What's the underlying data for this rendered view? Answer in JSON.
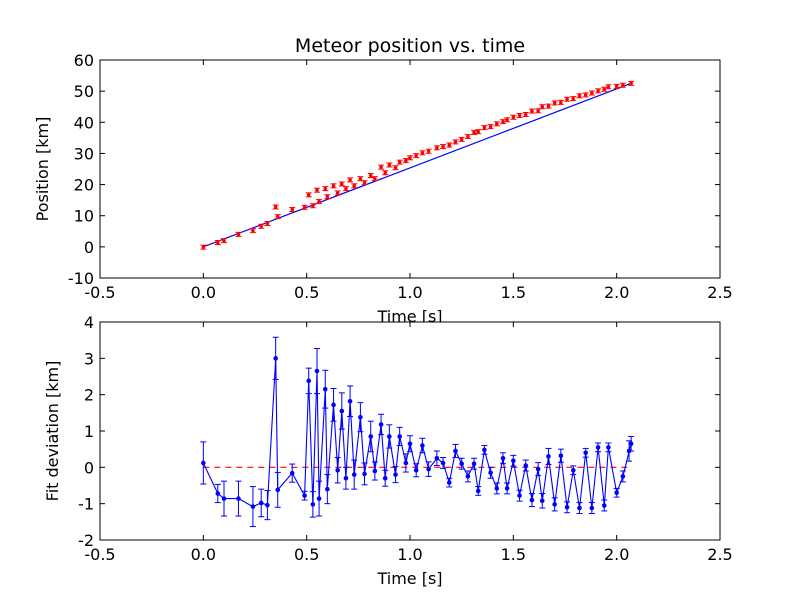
{
  "chart_data": [
    {
      "type": "scatter",
      "title": "Meteor position vs. time",
      "xlabel": "Time [s]",
      "ylabel": "Position [km]",
      "xlim": [
        -0.5,
        2.5
      ],
      "ylim": [
        -10,
        60
      ],
      "xticks": [
        "-0.5",
        "0.0",
        "0.5",
        "1.0",
        "1.5",
        "2.0",
        "2.5"
      ],
      "yticks": [
        "-10",
        "0",
        "10",
        "20",
        "30",
        "40",
        "50",
        "60"
      ],
      "points_color": "#ff0000",
      "fit_color": "#0000ff",
      "fit_line": {
        "x": [
          0.0,
          2.07
        ],
        "y": [
          0.0,
          52.5
        ]
      },
      "points": [
        {
          "x": 0.0,
          "y": -0.1
        },
        {
          "x": 0.07,
          "y": 1.4
        },
        {
          "x": 0.1,
          "y": 2.0
        },
        {
          "x": 0.17,
          "y": 4.0
        },
        {
          "x": 0.24,
          "y": 5.2
        },
        {
          "x": 0.28,
          "y": 6.6
        },
        {
          "x": 0.31,
          "y": 7.5
        },
        {
          "x": 0.35,
          "y": 12.8
        },
        {
          "x": 0.36,
          "y": 9.7
        },
        {
          "x": 0.43,
          "y": 12.0
        },
        {
          "x": 0.49,
          "y": 12.7
        },
        {
          "x": 0.51,
          "y": 16.7
        },
        {
          "x": 0.53,
          "y": 13.2
        },
        {
          "x": 0.55,
          "y": 18.2
        },
        {
          "x": 0.56,
          "y": 14.6
        },
        {
          "x": 0.59,
          "y": 18.7
        },
        {
          "x": 0.6,
          "y": 16.1
        },
        {
          "x": 0.63,
          "y": 19.6
        },
        {
          "x": 0.65,
          "y": 17.3
        },
        {
          "x": 0.67,
          "y": 20.2
        },
        {
          "x": 0.69,
          "y": 18.7
        },
        {
          "x": 0.71,
          "y": 21.5
        },
        {
          "x": 0.73,
          "y": 19.6
        },
        {
          "x": 0.76,
          "y": 21.9
        },
        {
          "x": 0.78,
          "y": 20.6
        },
        {
          "x": 0.81,
          "y": 22.9
        },
        {
          "x": 0.83,
          "y": 21.9
        },
        {
          "x": 0.86,
          "y": 25.6
        },
        {
          "x": 0.88,
          "y": 23.8
        },
        {
          "x": 0.9,
          "y": 26.3
        },
        {
          "x": 0.93,
          "y": 25.4
        },
        {
          "x": 0.95,
          "y": 27.2
        },
        {
          "x": 0.98,
          "y": 27.7
        },
        {
          "x": 1.0,
          "y": 28.6
        },
        {
          "x": 1.03,
          "y": 29.3
        },
        {
          "x": 1.06,
          "y": 30.2
        },
        {
          "x": 1.09,
          "y": 30.7
        },
        {
          "x": 1.13,
          "y": 31.8
        },
        {
          "x": 1.16,
          "y": 32.2
        },
        {
          "x": 1.19,
          "y": 32.7
        },
        {
          "x": 1.22,
          "y": 33.7
        },
        {
          "x": 1.25,
          "y": 34.5
        },
        {
          "x": 1.28,
          "y": 35.4
        },
        {
          "x": 1.31,
          "y": 36.7
        },
        {
          "x": 1.33,
          "y": 37.0
        },
        {
          "x": 1.36,
          "y": 38.3
        },
        {
          "x": 1.39,
          "y": 38.6
        },
        {
          "x": 1.42,
          "y": 39.5
        },
        {
          "x": 1.45,
          "y": 40.2
        },
        {
          "x": 1.47,
          "y": 40.8
        },
        {
          "x": 1.5,
          "y": 41.6
        },
        {
          "x": 1.53,
          "y": 42.2
        },
        {
          "x": 1.56,
          "y": 42.5
        },
        {
          "x": 1.59,
          "y": 43.6
        },
        {
          "x": 1.62,
          "y": 43.7
        },
        {
          "x": 1.64,
          "y": 45.0
        },
        {
          "x": 1.67,
          "y": 45.2
        },
        {
          "x": 1.7,
          "y": 46.2
        },
        {
          "x": 1.73,
          "y": 46.4
        },
        {
          "x": 1.76,
          "y": 47.4
        },
        {
          "x": 1.79,
          "y": 47.6
        },
        {
          "x": 1.82,
          "y": 48.5
        },
        {
          "x": 1.85,
          "y": 48.8
        },
        {
          "x": 1.88,
          "y": 49.4
        },
        {
          "x": 1.91,
          "y": 50.1
        },
        {
          "x": 1.94,
          "y": 50.6
        },
        {
          "x": 1.96,
          "y": 51.4
        },
        {
          "x": 2.0,
          "y": 51.5
        },
        {
          "x": 2.03,
          "y": 51.9
        },
        {
          "x": 2.07,
          "y": 52.5
        }
      ]
    },
    {
      "type": "line",
      "title": "",
      "xlabel": "Time [s]",
      "ylabel": "Fit deviation [km]",
      "xlim": [
        -0.5,
        2.5
      ],
      "ylim": [
        -2,
        4
      ],
      "xticks": [
        "-0.5",
        "0.0",
        "0.5",
        "1.0",
        "1.5",
        "2.0",
        "2.5"
      ],
      "yticks": [
        "-2",
        "-1",
        "0",
        "1",
        "2",
        "3",
        "4"
      ],
      "series_color": "#0000ff",
      "zero_line_color": "#ff0000",
      "zero_line": {
        "x": [
          0.0,
          2.07
        ],
        "y": 0.0
      },
      "series": [
        {
          "x": 0.0,
          "y": 0.12,
          "err": 0.58
        },
        {
          "x": 0.07,
          "y": -0.72,
          "err": 0.25
        },
        {
          "x": 0.1,
          "y": -0.86,
          "err": 0.48
        },
        {
          "x": 0.17,
          "y": -0.86,
          "err": 0.48
        },
        {
          "x": 0.24,
          "y": -1.08,
          "err": 0.55
        },
        {
          "x": 0.28,
          "y": -0.98,
          "err": 0.38
        },
        {
          "x": 0.31,
          "y": -1.04,
          "err": 0.4
        },
        {
          "x": 0.35,
          "y": 3.0,
          "err": 0.58
        },
        {
          "x": 0.36,
          "y": -0.62,
          "err": 0.48
        },
        {
          "x": 0.43,
          "y": -0.16,
          "err": 0.25
        },
        {
          "x": 0.49,
          "y": -0.78,
          "err": 0.12
        },
        {
          "x": 0.51,
          "y": 2.38,
          "err": 0.35
        },
        {
          "x": 0.53,
          "y": -1.02,
          "err": 0.35
        },
        {
          "x": 0.55,
          "y": 2.65,
          "err": 0.62
        },
        {
          "x": 0.56,
          "y": -0.86,
          "err": 0.48
        },
        {
          "x": 0.59,
          "y": 2.15,
          "err": 0.52
        },
        {
          "x": 0.6,
          "y": -0.6,
          "err": 0.4
        },
        {
          "x": 0.63,
          "y": 1.72,
          "err": 0.45
        },
        {
          "x": 0.65,
          "y": -0.08,
          "err": 0.35
        },
        {
          "x": 0.67,
          "y": 1.55,
          "err": 0.5
        },
        {
          "x": 0.69,
          "y": -0.3,
          "err": 0.3
        },
        {
          "x": 0.71,
          "y": 1.82,
          "err": 0.42
        },
        {
          "x": 0.73,
          "y": -0.2,
          "err": 0.4
        },
        {
          "x": 0.76,
          "y": 1.38,
          "err": 0.4
        },
        {
          "x": 0.78,
          "y": -0.18,
          "err": 0.3
        },
        {
          "x": 0.81,
          "y": 0.85,
          "err": 0.42
        },
        {
          "x": 0.83,
          "y": -0.1,
          "err": 0.25
        },
        {
          "x": 0.86,
          "y": 1.18,
          "err": 0.28
        },
        {
          "x": 0.88,
          "y": -0.3,
          "err": 0.22
        },
        {
          "x": 0.9,
          "y": 0.85,
          "err": 0.32
        },
        {
          "x": 0.93,
          "y": -0.2,
          "err": 0.22
        },
        {
          "x": 0.95,
          "y": 0.85,
          "err": 0.25
        },
        {
          "x": 0.98,
          "y": 0.12,
          "err": 0.25
        },
        {
          "x": 1.0,
          "y": 0.65,
          "err": 0.22
        },
        {
          "x": 1.03,
          "y": -0.08,
          "err": 0.18
        },
        {
          "x": 1.06,
          "y": 0.6,
          "err": 0.2
        },
        {
          "x": 1.09,
          "y": -0.05,
          "err": 0.2
        },
        {
          "x": 1.13,
          "y": 0.25,
          "err": 0.2
        },
        {
          "x": 1.16,
          "y": 0.12,
          "err": 0.15
        },
        {
          "x": 1.19,
          "y": -0.42,
          "err": 0.12
        },
        {
          "x": 1.22,
          "y": 0.45,
          "err": 0.18
        },
        {
          "x": 1.25,
          "y": 0.1,
          "err": 0.15
        },
        {
          "x": 1.28,
          "y": -0.25,
          "err": 0.15
        },
        {
          "x": 1.31,
          "y": 0.1,
          "err": 0.15
        },
        {
          "x": 1.33,
          "y": -0.65,
          "err": 0.12
        },
        {
          "x": 1.36,
          "y": 0.48,
          "err": 0.12
        },
        {
          "x": 1.39,
          "y": -0.15,
          "err": 0.15
        },
        {
          "x": 1.42,
          "y": -0.58,
          "err": 0.15
        },
        {
          "x": 1.45,
          "y": 0.25,
          "err": 0.15
        },
        {
          "x": 1.47,
          "y": -0.58,
          "err": 0.15
        },
        {
          "x": 1.5,
          "y": 0.18,
          "err": 0.15
        },
        {
          "x": 1.53,
          "y": -0.78,
          "err": 0.15
        },
        {
          "x": 1.56,
          "y": 0.05,
          "err": 0.15
        },
        {
          "x": 1.59,
          "y": -0.9,
          "err": 0.18
        },
        {
          "x": 1.62,
          "y": -0.05,
          "err": 0.18
        },
        {
          "x": 1.64,
          "y": -0.92,
          "err": 0.2
        },
        {
          "x": 1.67,
          "y": 0.3,
          "err": 0.22
        },
        {
          "x": 1.7,
          "y": -1.02,
          "err": 0.18
        },
        {
          "x": 1.73,
          "y": 0.32,
          "err": 0.18
        },
        {
          "x": 1.76,
          "y": -1.1,
          "err": 0.15
        },
        {
          "x": 1.79,
          "y": -0.08,
          "err": 0.12
        },
        {
          "x": 1.82,
          "y": -1.12,
          "err": 0.15
        },
        {
          "x": 1.85,
          "y": 0.4,
          "err": 0.12
        },
        {
          "x": 1.88,
          "y": -1.12,
          "err": 0.15
        },
        {
          "x": 1.91,
          "y": 0.55,
          "err": 0.12
        },
        {
          "x": 1.94,
          "y": -1.05,
          "err": 0.15
        },
        {
          "x": 1.96,
          "y": 0.55,
          "err": 0.12
        },
        {
          "x": 2.0,
          "y": -0.7,
          "err": 0.12
        },
        {
          "x": 2.03,
          "y": -0.25,
          "err": 0.15
        },
        {
          "x": 2.07,
          "y": 0.65,
          "err": 0.2
        },
        {
          "x": 2.06,
          "y": 0.45,
          "err": 0.28
        }
      ]
    }
  ]
}
